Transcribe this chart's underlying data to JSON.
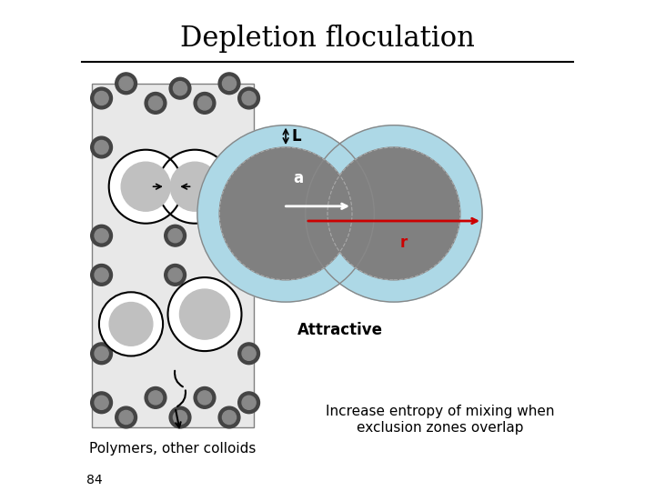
{
  "title": "Depletion floculation",
  "title_fontsize": 22,
  "background_color": "#ffffff",
  "slide_number": "84",
  "attractive_label": "Attractive",
  "polymers_label": "Polymers, other colloids",
  "entropy_label": "Increase entropy of mixing when\nexclusion zones overlap",
  "core_color": "#808080",
  "outer_color": "#add8e6",
  "arrow_color_white": "#ffffff",
  "arrow_color_red": "#cc0000",
  "L_label": "L",
  "a_label": "a",
  "r_label": "r",
  "c1x": 0.415,
  "c1y": 0.565,
  "c2x": 0.635,
  "c2y": 0.565,
  "core_r": 0.135,
  "outer_r": 0.18
}
